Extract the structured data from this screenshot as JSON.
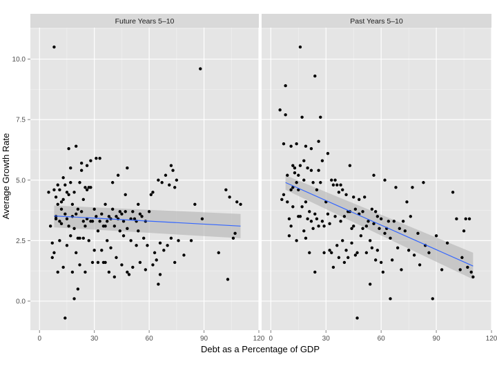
{
  "chart_data": {
    "type": "scatter",
    "xlabel": "Debt as a Percentage of GDP",
    "ylabel": "Average Growth Rate",
    "xlim": [
      -5,
      120
    ],
    "ylim": [
      -1.2,
      11.3
    ],
    "x_ticks": [
      "0",
      "30",
      "60",
      "90",
      "120"
    ],
    "y_ticks": [
      "0.0",
      "2.5",
      "5.0",
      "7.5",
      "10.0"
    ],
    "grid": true,
    "smooth": "linear fit with shaded confidence band",
    "colors": {
      "panel_bg": "#e5e5e5",
      "strip_bg": "#d9d9d9",
      "grid": "#ffffff",
      "point": "#000000",
      "fit_line": "#3366ff",
      "band": "#b3b3b3"
    },
    "panels": [
      {
        "label": "Future Years 5–10",
        "fit": {
          "x": [
            8,
            110
          ],
          "y": [
            3.52,
            3.1
          ],
          "se_low": [
            3.05,
            2.6
          ],
          "se_high": [
            3.95,
            3.6
          ]
        },
        "points": [
          [
            5,
            4.5
          ],
          [
            6,
            3.1
          ],
          [
            7,
            2.4
          ],
          [
            7,
            1.8
          ],
          [
            8,
            10.5
          ],
          [
            8,
            2.0
          ],
          [
            8,
            4.6
          ],
          [
            9,
            4.3
          ],
          [
            9,
            3.5
          ],
          [
            9,
            3.4
          ],
          [
            10,
            1.2
          ],
          [
            10,
            4.8
          ],
          [
            10,
            4.0
          ],
          [
            11,
            3.3
          ],
          [
            11,
            2.5
          ],
          [
            11,
            4.6
          ],
          [
            12,
            4.1
          ],
          [
            12,
            3.8
          ],
          [
            12,
            3.2
          ],
          [
            13,
            1.4
          ],
          [
            13,
            4.2
          ],
          [
            13,
            5.1
          ],
          [
            14,
            -0.7
          ],
          [
            14,
            4.8
          ],
          [
            14,
            3.6
          ],
          [
            15,
            3.4
          ],
          [
            15,
            4.5
          ],
          [
            15,
            2.3
          ],
          [
            16,
            4.4
          ],
          [
            16,
            6.3
          ],
          [
            16,
            3.1
          ],
          [
            17,
            4.9
          ],
          [
            17,
            5.5
          ],
          [
            17,
            2.7
          ],
          [
            18,
            4.0
          ],
          [
            18,
            3.5
          ],
          [
            18,
            1.2
          ],
          [
            19,
            0.1
          ],
          [
            19,
            4.5
          ],
          [
            19,
            3.0
          ],
          [
            20,
            6.4
          ],
          [
            20,
            3.6
          ],
          [
            20,
            2.0
          ],
          [
            21,
            2.6
          ],
          [
            21,
            0.5
          ],
          [
            21,
            3.8
          ],
          [
            22,
            4.9
          ],
          [
            22,
            2.6
          ],
          [
            22,
            1.5
          ],
          [
            23,
            5.4
          ],
          [
            23,
            3.7
          ],
          [
            23,
            5.7
          ],
          [
            24,
            2.6
          ],
          [
            24,
            4.2
          ],
          [
            24,
            3.3
          ],
          [
            25,
            4.7
          ],
          [
            25,
            1.2
          ],
          [
            25,
            3.1
          ],
          [
            26,
            5.6
          ],
          [
            26,
            4.6
          ],
          [
            26,
            3.4
          ],
          [
            27,
            2.5
          ],
          [
            27,
            4.7
          ],
          [
            28,
            3.3
          ],
          [
            28,
            4.7
          ],
          [
            28,
            5.8
          ],
          [
            29,
            3.3
          ],
          [
            29,
            1.6
          ],
          [
            30,
            3.8
          ],
          [
            30,
            2.1
          ],
          [
            31,
            3.5
          ],
          [
            31,
            5.9
          ],
          [
            32,
            2.9
          ],
          [
            32,
            1.6
          ],
          [
            33,
            3.3
          ],
          [
            33,
            5.9
          ],
          [
            34,
            3.6
          ],
          [
            34,
            2.1
          ],
          [
            35,
            1.6
          ],
          [
            35,
            3.1
          ],
          [
            36,
            3.1
          ],
          [
            36,
            4.0
          ],
          [
            36,
            1.6
          ],
          [
            37,
            3.3
          ],
          [
            37,
            2.5
          ],
          [
            38,
            3.5
          ],
          [
            38,
            1.2
          ],
          [
            39,
            3.4
          ],
          [
            39,
            2.2
          ],
          [
            40,
            4.9
          ],
          [
            40,
            3.8
          ],
          [
            41,
            3.1
          ],
          [
            41,
            1.0
          ],
          [
            42,
            3.5
          ],
          [
            42,
            1.8
          ],
          [
            43,
            3.4
          ],
          [
            43,
            5.2
          ],
          [
            44,
            2.9
          ],
          [
            44,
            3.7
          ],
          [
            45,
            1.5
          ],
          [
            45,
            3.6
          ],
          [
            46,
            3.3
          ],
          [
            46,
            2.7
          ],
          [
            47,
            3.7
          ],
          [
            47,
            4.4
          ],
          [
            48,
            1.2
          ],
          [
            48,
            3.0
          ],
          [
            48,
            5.5
          ],
          [
            49,
            1.1
          ],
          [
            50,
            2.5
          ],
          [
            50,
            3.4
          ],
          [
            51,
            1.4
          ],
          [
            51,
            3.7
          ],
          [
            52,
            3.4
          ],
          [
            53,
            3.3
          ],
          [
            53,
            2.3
          ],
          [
            54,
            4.0
          ],
          [
            54,
            2.9
          ],
          [
            55,
            1.6
          ],
          [
            55,
            3.6
          ],
          [
            56,
            3.5
          ],
          [
            57,
            2.6
          ],
          [
            58,
            3.3
          ],
          [
            58,
            1.3
          ],
          [
            59,
            2.3
          ],
          [
            60,
            3.7
          ],
          [
            61,
            4.4
          ],
          [
            62,
            4.5
          ],
          [
            62,
            1.5
          ],
          [
            63,
            2.0
          ],
          [
            64,
            1.7
          ],
          [
            65,
            5.0
          ],
          [
            65,
            0.7
          ],
          [
            66,
            1.1
          ],
          [
            66,
            2.4
          ],
          [
            67,
            4.9
          ],
          [
            68,
            2.1
          ],
          [
            69,
            5.2
          ],
          [
            70,
            2.3
          ],
          [
            71,
            4.8
          ],
          [
            72,
            5.6
          ],
          [
            72,
            2.6
          ],
          [
            73,
            5.4
          ],
          [
            74,
            4.7
          ],
          [
            74,
            1.6
          ],
          [
            75,
            5.0
          ],
          [
            76,
            2.5
          ],
          [
            79,
            1.9
          ],
          [
            83,
            2.5
          ],
          [
            85,
            4.0
          ],
          [
            88,
            9.6
          ],
          [
            89,
            3.4
          ],
          [
            98,
            2.0
          ],
          [
            102,
            4.6
          ],
          [
            103,
            0.9
          ],
          [
            104,
            4.3
          ],
          [
            106,
            2.6
          ],
          [
            107,
            2.8
          ],
          [
            108,
            4.1
          ],
          [
            110,
            4.0
          ]
        ]
      },
      {
        "label": "Past Years 5–10",
        "fit": {
          "x": [
            8,
            110
          ],
          "y": [
            4.9,
            1.45
          ],
          "se_low": [
            4.6,
            0.9
          ],
          "se_high": [
            5.2,
            2.0
          ]
        },
        "points": [
          [
            5,
            7.9
          ],
          [
            6,
            4.2
          ],
          [
            7,
            6.5
          ],
          [
            7,
            4.4
          ],
          [
            8,
            7.7
          ],
          [
            8,
            8.9
          ],
          [
            9,
            5.2
          ],
          [
            9,
            4.1
          ],
          [
            10,
            3.4
          ],
          [
            10,
            2.7
          ],
          [
            11,
            6.4
          ],
          [
            11,
            4.6
          ],
          [
            11,
            3.1
          ],
          [
            12,
            5.6
          ],
          [
            12,
            4.7
          ],
          [
            12,
            3.9
          ],
          [
            13,
            5.5
          ],
          [
            13,
            5.3
          ],
          [
            14,
            6.5
          ],
          [
            14,
            4.9
          ],
          [
            14,
            2.5
          ],
          [
            15,
            5.2
          ],
          [
            15,
            4.6
          ],
          [
            15,
            3.5
          ],
          [
            16,
            10.5
          ],
          [
            16,
            5.6
          ],
          [
            16,
            3.5
          ],
          [
            17,
            7.6
          ],
          [
            17,
            3.9
          ],
          [
            18,
            5.8
          ],
          [
            18,
            5.0
          ],
          [
            18,
            2.9
          ],
          [
            19,
            6.4
          ],
          [
            19,
            4.1
          ],
          [
            19,
            2.6
          ],
          [
            20,
            5.5
          ],
          [
            20,
            3.4
          ],
          [
            21,
            2.0
          ],
          [
            21,
            3.7
          ],
          [
            22,
            5.4
          ],
          [
            22,
            6.3
          ],
          [
            22,
            3.3
          ],
          [
            23,
            4.9
          ],
          [
            23,
            3.0
          ],
          [
            24,
            9.3
          ],
          [
            24,
            3.6
          ],
          [
            24,
            1.2
          ],
          [
            25,
            4.6
          ],
          [
            25,
            3.4
          ],
          [
            26,
            6.6
          ],
          [
            26,
            5.4
          ],
          [
            26,
            3.1
          ],
          [
            27,
            7.6
          ],
          [
            27,
            4.9
          ],
          [
            28,
            5.8
          ],
          [
            28,
            3.3
          ],
          [
            29,
            3.1
          ],
          [
            29,
            2.0
          ],
          [
            30,
            4.1
          ],
          [
            31,
            6.1
          ],
          [
            31,
            3.6
          ],
          [
            32,
            3.2
          ],
          [
            32,
            2.1
          ],
          [
            33,
            5.0
          ],
          [
            33,
            2.0
          ],
          [
            34,
            4.8
          ],
          [
            34,
            1.4
          ],
          [
            35,
            5.0
          ],
          [
            35,
            3.5
          ],
          [
            36,
            4.8
          ],
          [
            36,
            2.3
          ],
          [
            37,
            4.5
          ],
          [
            37,
            1.8
          ],
          [
            38,
            4.8
          ],
          [
            38,
            3.3
          ],
          [
            39,
            4.6
          ],
          [
            39,
            2.5
          ],
          [
            40,
            3.5
          ],
          [
            40,
            1.6
          ],
          [
            41,
            4.4
          ],
          [
            41,
            2.1
          ],
          [
            42,
            3.7
          ],
          [
            42,
            1.8
          ],
          [
            43,
            3.7
          ],
          [
            43,
            5.6
          ],
          [
            44,
            3.0
          ],
          [
            44,
            2.4
          ],
          [
            45,
            3.1
          ],
          [
            45,
            4.3
          ],
          [
            46,
            3.8
          ],
          [
            46,
            1.9
          ],
          [
            47,
            -0.7
          ],
          [
            47,
            2.0
          ],
          [
            48,
            3.6
          ],
          [
            48,
            4.2
          ],
          [
            49,
            2.7
          ],
          [
            50,
            3.7
          ],
          [
            50,
            3.0
          ],
          [
            51,
            4.3
          ],
          [
            52,
            2.0
          ],
          [
            52,
            3.1
          ],
          [
            53,
            3.3
          ],
          [
            54,
            0.7
          ],
          [
            54,
            2.5
          ],
          [
            55,
            3.8
          ],
          [
            55,
            2.2
          ],
          [
            56,
            5.2
          ],
          [
            56,
            3.2
          ],
          [
            57,
            3.7
          ],
          [
            57,
            1.7
          ],
          [
            58,
            3.5
          ],
          [
            58,
            2.1
          ],
          [
            59,
            3.0
          ],
          [
            60,
            3.4
          ],
          [
            60,
            1.6
          ],
          [
            61,
            1.2
          ],
          [
            62,
            2.8
          ],
          [
            62,
            5.0
          ],
          [
            63,
            3.0
          ],
          [
            64,
            3.3
          ],
          [
            65,
            2.6
          ],
          [
            65,
            0.1
          ],
          [
            66,
            1.7
          ],
          [
            67,
            3.3
          ],
          [
            68,
            4.7
          ],
          [
            69,
            2.2
          ],
          [
            70,
            3.0
          ],
          [
            71,
            1.3
          ],
          [
            72,
            3.3
          ],
          [
            73,
            2.9
          ],
          [
            74,
            4.1
          ],
          [
            75,
            2.1
          ],
          [
            76,
            3.5
          ],
          [
            77,
            4.7
          ],
          [
            78,
            1.9
          ],
          [
            80,
            2.8
          ],
          [
            81,
            1.5
          ],
          [
            83,
            4.9
          ],
          [
            84,
            2.3
          ],
          [
            86,
            2.0
          ],
          [
            88,
            0.1
          ],
          [
            90,
            2.7
          ],
          [
            93,
            1.3
          ],
          [
            96,
            2.4
          ],
          [
            99,
            4.5
          ],
          [
            101,
            3.4
          ],
          [
            103,
            1.3
          ],
          [
            104,
            1.8
          ],
          [
            105,
            2.9
          ],
          [
            106,
            3.4
          ],
          [
            107,
            1.4
          ],
          [
            108,
            3.4
          ],
          [
            109,
            1.2
          ],
          [
            110,
            1.0
          ]
        ]
      }
    ]
  }
}
